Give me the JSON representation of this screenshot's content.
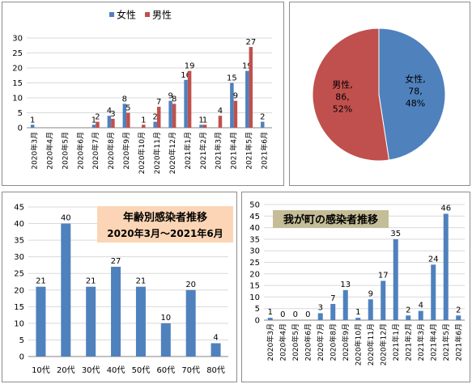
{
  "colors": {
    "female": "#4f81bd",
    "male": "#c0504d",
    "age_bar": "#4f81bd",
    "town_bar": "#4f81bd",
    "age_title_bg": "#fbd5b5",
    "town_title_bg": "#c4bd97",
    "grid": "#d9d9d9"
  },
  "chart_data": [
    {
      "type": "bar",
      "legend_position": "top",
      "categories": [
        "2020年3月",
        "2020年4月",
        "2020年5月",
        "2020年6月",
        "2020年7月",
        "2020年8月",
        "2020年9月",
        "2020年10月",
        "2020年11月",
        "2020年12月",
        "2021年1月",
        "2021年2月",
        "2021年3月",
        "2021年4月",
        "2021年5月",
        "2021年6月"
      ],
      "series": [
        {
          "name": "女性",
          "values": [
            1,
            0,
            0,
            0,
            1,
            4,
            8,
            0,
            2,
            9,
            16,
            1,
            0,
            15,
            19,
            2
          ],
          "labels": [
            "1",
            "",
            "",
            "",
            "1",
            "4",
            "8",
            "",
            "2",
            "9",
            "16",
            "1",
            "",
            "15",
            "19",
            "2"
          ]
        },
        {
          "name": "男性",
          "values": [
            0,
            0,
            0,
            0,
            2,
            3,
            5,
            1,
            7,
            8,
            19,
            1,
            4,
            9,
            27,
            0
          ],
          "labels": [
            "",
            "",
            "",
            "",
            "2",
            "3",
            "5",
            "1",
            "7",
            "8",
            "19",
            "1",
            "4",
            "9",
            "27",
            ""
          ]
        }
      ],
      "ylim": [
        0,
        30
      ],
      "yticks": [
        0,
        5,
        10,
        15,
        20,
        25,
        30
      ],
      "grid": true
    },
    {
      "type": "pie",
      "slices": [
        {
          "name": "女性",
          "value": 78,
          "percent": "48%",
          "label_name": "女性,",
          "label_value": "78,"
        },
        {
          "name": "男性",
          "value": 86,
          "percent": "52%",
          "label_name": "男性,",
          "label_value": "86,"
        }
      ]
    },
    {
      "type": "bar",
      "title_line1": "年齢別感染者推移",
      "title_line2": "2020年3月～2021年6月",
      "categories": [
        "10代",
        "20代",
        "30代",
        "40代",
        "50代",
        "60代",
        "70代",
        "80代"
      ],
      "values": [
        21,
        40,
        21,
        27,
        21,
        10,
        20,
        4
      ],
      "ylim": [
        0,
        45
      ],
      "yticks": [
        0,
        5,
        10,
        15,
        20,
        25,
        30,
        35,
        40,
        45
      ],
      "grid": true
    },
    {
      "type": "bar",
      "title": "我が町の感染者推移",
      "categories": [
        "2020年3月",
        "2020年4月",
        "2020年5月",
        "2020年6月",
        "2020年7月",
        "2020年8月",
        "2020年9月",
        "2020年10月",
        "2020年11月",
        "2020年12月",
        "2021年1月",
        "2021年2月",
        "2021年3月",
        "2021年4月",
        "2021年5月",
        "2021年6月"
      ],
      "values": [
        1,
        0,
        0,
        0,
        3,
        7,
        13,
        1,
        9,
        17,
        35,
        2,
        4,
        24,
        46,
        2
      ],
      "ylim": [
        0,
        50
      ],
      "yticks": [
        0,
        5,
        10,
        15,
        20,
        25,
        30,
        35,
        40,
        45,
        50
      ],
      "grid": true
    }
  ]
}
